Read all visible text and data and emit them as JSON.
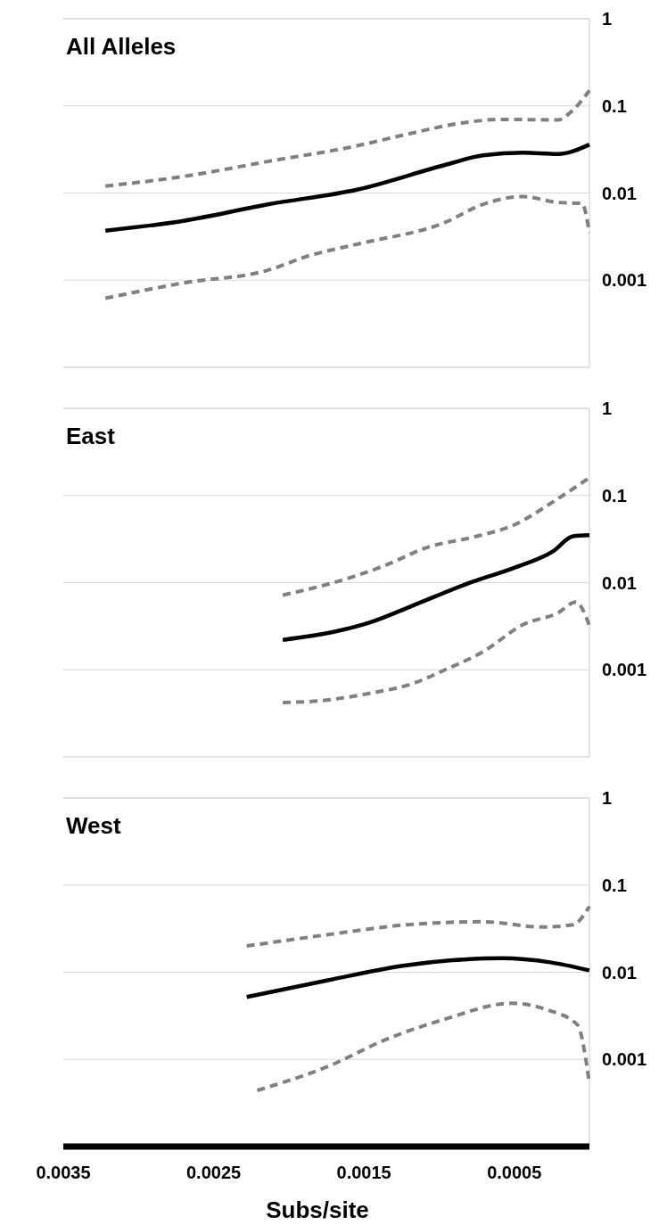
{
  "chart_data": [
    {
      "type": "line",
      "title": "All Alleles",
      "log": true,
      "grid": "y",
      "tick_labels": "y",
      "xlim": [
        0.0035,
        0
      ],
      "ylim": [
        0.0001,
        1
      ],
      "yticks": [
        0.001,
        0.01,
        0.1,
        1
      ],
      "series": [
        {
          "color": "#808080",
          "line_style": "dashed",
          "x": [
            0.00322,
            0.0027,
            0.00214,
            0.00154,
            0.00122,
            0.00084,
            0.00058,
            0.00021,
            0.00013,
            0
          ],
          "values": [
            0.012,
            0.0155,
            0.023,
            0.035,
            0.047,
            0.064,
            0.07,
            0.069,
            0.083,
            0.15
          ]
        },
        {
          "color": "#000000",
          "line_style": "solid",
          "x": [
            0.00322,
            0.0027,
            0.00214,
            0.00154,
            0.00096,
            0.00071,
            0.00044,
            0.00021,
            0
          ],
          "values": [
            0.0037,
            0.0048,
            0.0074,
            0.011,
            0.021,
            0.027,
            0.029,
            0.028,
            0.036
          ]
        },
        {
          "color": "#808080",
          "line_style": "dashed",
          "x": [
            0.00322,
            0.0027,
            0.00214,
            0.00187,
            0.00154,
            0.00096,
            0.00071,
            0.00044,
            0.00021,
            5e-05,
            0
          ],
          "values": [
            0.00062,
            0.00093,
            0.0013,
            0.0019,
            0.0026,
            0.0046,
            0.0074,
            0.0091,
            0.0078,
            0.0076,
            0.0035
          ]
        }
      ]
    },
    {
      "type": "line",
      "title": "East",
      "log": true,
      "grid": "y",
      "tick_labels": "y",
      "xlim": [
        0.0035,
        0
      ],
      "ylim": [
        0.0001,
        1
      ],
      "yticks": [
        0.001,
        0.01,
        0.1,
        1
      ],
      "series": [
        {
          "color": "#808080",
          "line_style": "dashed",
          "x": [
            0.00204,
            0.00172,
            0.00135,
            0.00109,
            0.00075,
            0.0005,
            0.00024,
            0
          ],
          "values": [
            0.0072,
            0.0098,
            0.016,
            0.025,
            0.034,
            0.046,
            0.085,
            0.16
          ]
        },
        {
          "color": "#000000",
          "line_style": "solid",
          "x": [
            0.00204,
            0.00167,
            0.00146,
            0.00117,
            0.00078,
            0.0005,
            0.00024,
            0.00011,
            0
          ],
          "values": [
            0.0022,
            0.0028,
            0.0035,
            0.0055,
            0.0102,
            0.0148,
            0.023,
            0.034,
            0.035
          ]
        },
        {
          "color": "#808080",
          "line_style": "dashed",
          "x": [
            0.00204,
            0.0018,
            0.00148,
            0.00117,
            0.00096,
            0.00071,
            0.00044,
            0.00021,
            9e-05,
            0
          ],
          "values": [
            0.00042,
            0.00044,
            0.00053,
            0.0007,
            0.001,
            0.0016,
            0.0033,
            0.0045,
            0.006,
            0.0032
          ]
        }
      ]
    },
    {
      "type": "line",
      "title": "West",
      "xlabel": "Subs/site",
      "log": true,
      "grid": "y",
      "xlim": [
        0.0035,
        0
      ],
      "xticks": [
        0.0035,
        0.0025,
        0.0015,
        0.0005
      ],
      "ylim": [
        0.0001,
        1
      ],
      "yticks": [
        0.001,
        0.01,
        0.1,
        1
      ],
      "series": [
        {
          "color": "#808080",
          "line_style": "dashed",
          "x": [
            0.00228,
            0.00174,
            0.00122,
            0.00071,
            0.00031,
            0.00011,
            0
          ],
          "values": [
            0.02,
            0.027,
            0.035,
            0.038,
            0.033,
            0.035,
            0.057
          ]
        },
        {
          "color": "#000000",
          "line_style": "solid",
          "x": [
            0.00228,
            0.00174,
            0.00122,
            0.00084,
            0.00058,
            0.00026,
            0
          ],
          "values": [
            0.0052,
            0.0081,
            0.012,
            0.014,
            0.0145,
            0.013,
            0.0105
          ]
        },
        {
          "color": "#808080",
          "line_style": "dashed",
          "x": [
            0.00221,
            0.00174,
            0.00135,
            0.00096,
            0.00052,
            0.00028,
            8e-05,
            0
          ],
          "values": [
            0.00044,
            0.00083,
            0.0017,
            0.0029,
            0.0044,
            0.0037,
            0.0025,
            0.00053
          ]
        }
      ]
    }
  ]
}
